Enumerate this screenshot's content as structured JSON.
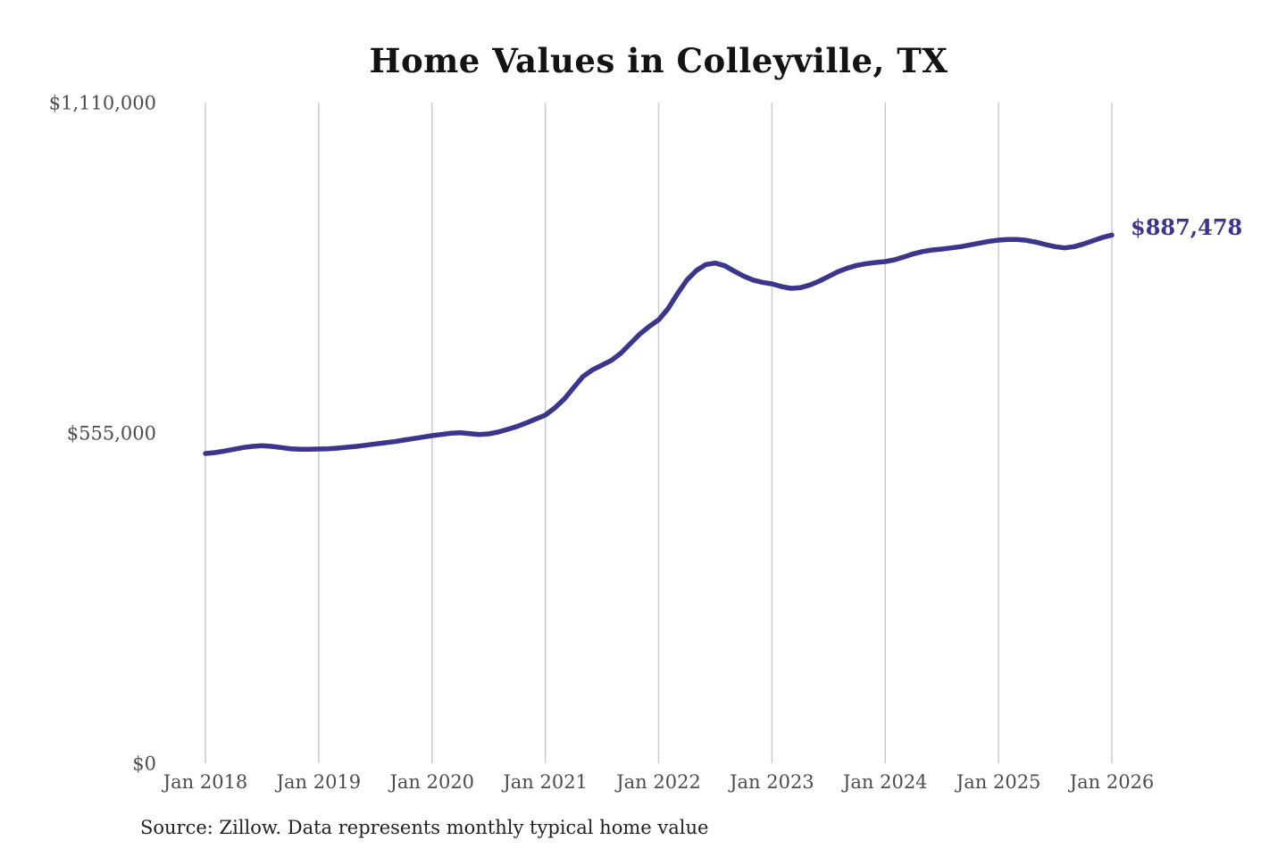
{
  "title": "Home Values in Colleyville, TX",
  "source_note": "Source: Zillow. Data represents monthly typical home value",
  "latest_value_label": "$887,478",
  "colors": {
    "line": "#3b358e",
    "grid": "#cccccc",
    "tick_text": "#4d4d4d",
    "title_text": "#131313",
    "source_text": "#222222",
    "background": "#ffffff"
  },
  "chart_data": {
    "type": "line",
    "title": "Home Values in Colleyville, TX",
    "xlabel": "",
    "ylabel": "",
    "legend": "none",
    "grid": "vertical-only",
    "x_unit": "month",
    "x_start": "2018-01",
    "x_end": "2026-01",
    "ylim": [
      0,
      1110000
    ],
    "y_tick_values": [
      0,
      555000,
      1110000
    ],
    "y_tick_labels": [
      "$0",
      "$555,000",
      "$1,110,000"
    ],
    "x_tick_labels": [
      "Jan 2018",
      "Jan 2019",
      "Jan 2020",
      "Jan 2021",
      "Jan 2022",
      "Jan 2023",
      "Jan 2024",
      "Jan 2025",
      "Jan 2026"
    ],
    "end_label": "$887,478",
    "end_value": 887478,
    "series": [
      {
        "name": "Typical home value",
        "unit": "USD",
        "monthly_values": [
          520500,
          522000,
          524500,
          527500,
          530500,
          532500,
          533500,
          532500,
          530500,
          528500,
          527500,
          527500,
          528000,
          528500,
          529500,
          531000,
          532500,
          534500,
          536500,
          538500,
          540500,
          543000,
          545500,
          548000,
          550500,
          552500,
          554500,
          555500,
          554000,
          552500,
          553500,
          556500,
          561000,
          566000,
          572000,
          578500,
          585000,
          597000,
          612000,
          631000,
          650000,
          661000,
          669000,
          677000,
          689000,
          705000,
          721000,
          734000,
          745000,
          764000,
          789000,
          812000,
          828000,
          838000,
          840500,
          836000,
          827000,
          818500,
          812000,
          808000,
          805500,
          801000,
          798000,
          799000,
          803500,
          810000,
          818000,
          826000,
          832000,
          836500,
          839500,
          841500,
          843000,
          846000,
          851000,
          856000,
          860000,
          862500,
          864000,
          866000,
          868000,
          871000,
          874000,
          877000,
          879000,
          880000,
          880000,
          878500,
          875500,
          871500,
          868000,
          866000,
          868000,
          872500,
          878000,
          883500,
          887478
        ]
      }
    ]
  }
}
